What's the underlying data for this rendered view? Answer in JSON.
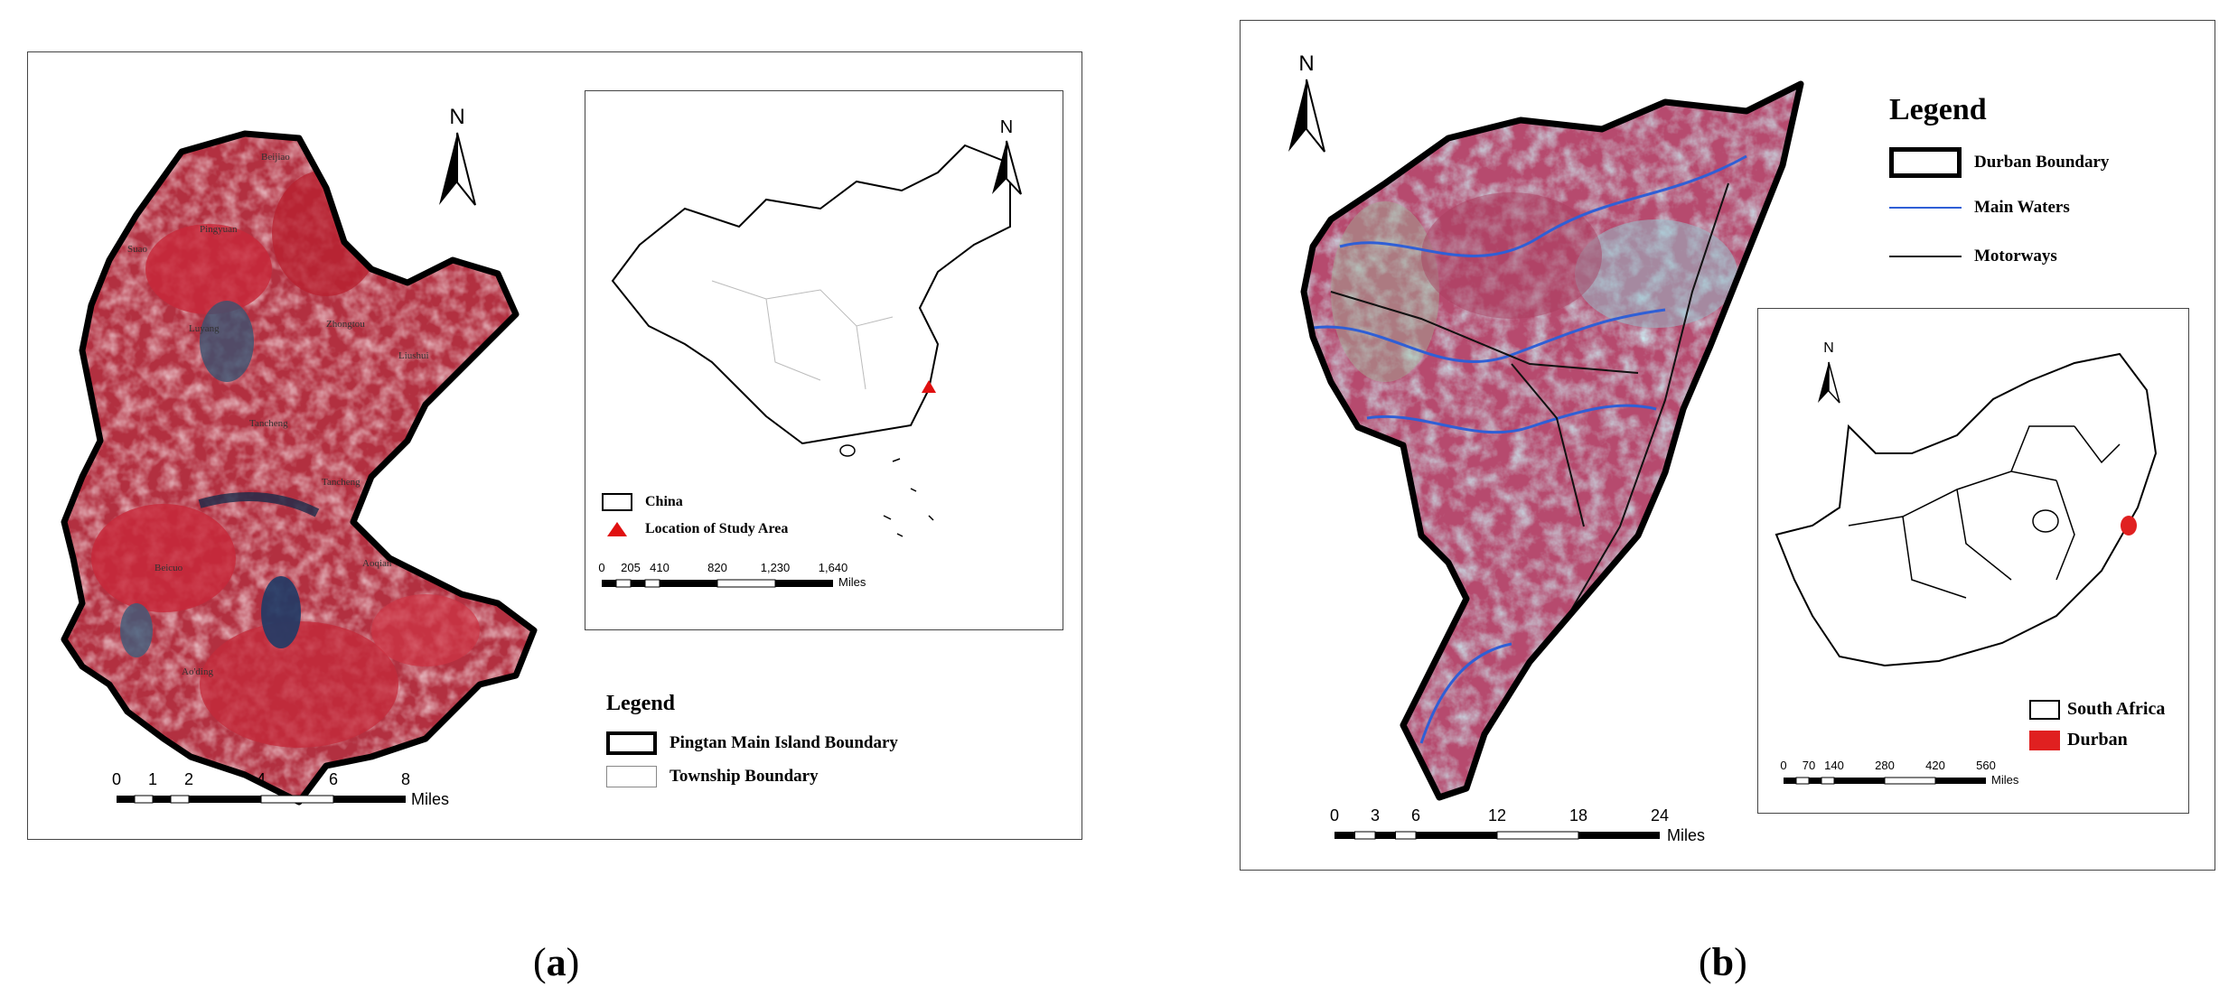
{
  "panel_a": {
    "north_label": "N",
    "inset_north_label": "N",
    "towns": [
      "Beijiao",
      "Pingyuan",
      "Suao",
      "Luyang",
      "Zhongtou",
      "Liushui",
      "Tancheng",
      "Tancheng",
      "Beicuo",
      "Aoqian",
      "Ao'ding"
    ],
    "inset_legend": [
      {
        "label": "China",
        "symbol": "box"
      },
      {
        "label": "Location of Study Area",
        "symbol": "red-triangle"
      }
    ],
    "inset_scale": {
      "ticks": [
        "0",
        "205",
        "410",
        "820",
        "1,230",
        "1,640"
      ],
      "unit": "Miles"
    },
    "legend_title": "Legend",
    "legend": [
      {
        "label": "Pingtan Main Island Boundary",
        "symbol": "thick-box"
      },
      {
        "label": "Township Boundary",
        "symbol": "thin-box"
      }
    ],
    "scale": {
      "ticks": [
        "0",
        "1",
        "2",
        "4",
        "6",
        "8"
      ],
      "unit": "Miles"
    },
    "caption": "a"
  },
  "panel_b": {
    "north_label": "N",
    "inset_north_label": "N",
    "legend_title": "Legend",
    "legend": [
      {
        "label": "Durban Boundary",
        "symbol": "thick-box"
      },
      {
        "label": "Main Waters",
        "symbol": "blue-line"
      },
      {
        "label": "Motorways",
        "symbol": "black-line"
      }
    ],
    "inset_legend": [
      {
        "label": "South Africa",
        "symbol": "box"
      },
      {
        "label": "Durban",
        "symbol": "red-box"
      }
    ],
    "inset_scale": {
      "ticks": [
        "0",
        "70",
        "140",
        "280",
        "420",
        "560"
      ],
      "unit": "Miles"
    },
    "scale": {
      "ticks": [
        "0",
        "3",
        "6",
        "12",
        "18",
        "24"
      ],
      "unit": "Miles"
    },
    "caption": "b"
  },
  "colors": {
    "imagery_red": "#c8283a",
    "imagery_pink": "#c24f74",
    "imagery_cyan": "#8fc3cf",
    "water_blue": "#2f5fd6",
    "marker_red": "#e01010",
    "durban_red": "#e02020"
  }
}
